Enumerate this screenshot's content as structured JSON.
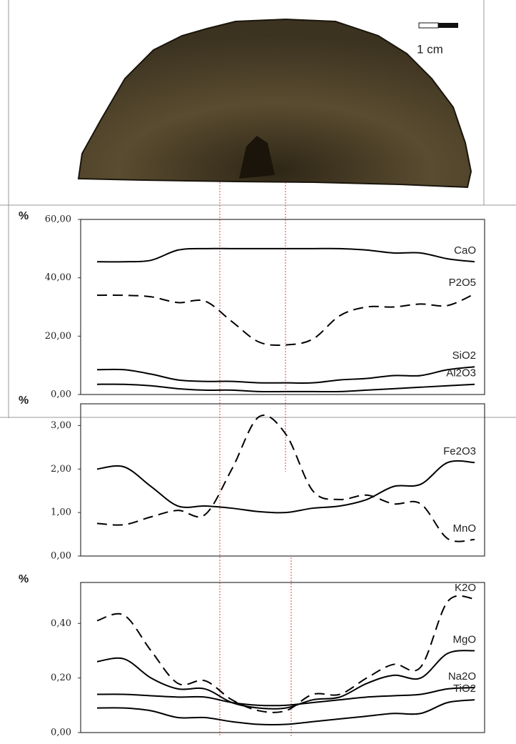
{
  "photo": {
    "scale_label": "1 cm"
  },
  "chart_data": [
    {
      "type": "line",
      "y_label": "%",
      "categories": [
        null,
        null,
        null,
        null,
        null,
        null,
        null,
        null,
        null,
        null,
        null,
        null,
        null,
        null,
        null
      ],
      "ylim": [
        0,
        60
      ],
      "yticks": [
        {
          "value": 0,
          "label": "0,00"
        },
        {
          "value": 20,
          "label": "20,00"
        },
        {
          "value": 40,
          "label": "40,00"
        },
        {
          "value": 60,
          "label": "60,00"
        }
      ],
      "series": [
        {
          "name": "CaO",
          "color": "#000000",
          "dashed": false,
          "values": [
            45.5,
            45.5,
            46,
            49.5,
            50,
            50,
            50,
            50,
            50,
            50,
            49.5,
            48.5,
            48.5,
            46.5,
            45.5
          ]
        },
        {
          "name": "P2O5",
          "color": "#000000",
          "dashed": true,
          "values": [
            34,
            34,
            33.5,
            31.5,
            32,
            25,
            18,
            17,
            19,
            27,
            30,
            30,
            31,
            30.5,
            34.5
          ]
        },
        {
          "name": "SiO2",
          "color": "#000000",
          "dashed": false,
          "values": [
            8.5,
            8.5,
            7,
            5,
            4.5,
            4.5,
            4,
            4,
            4,
            5,
            5.5,
            6.5,
            6.5,
            8.5,
            9.5
          ]
        },
        {
          "name": "Al2O3",
          "color": "#000000",
          "dashed": false,
          "values": [
            3.5,
            3.5,
            3,
            2,
            1.5,
            1.5,
            1,
            1,
            1,
            1,
            1.5,
            2,
            2.5,
            3,
            3.5
          ]
        }
      ]
    },
    {
      "type": "line",
      "y_label": "%",
      "categories": [
        null,
        null,
        null,
        null,
        null,
        null,
        null,
        null,
        null,
        null,
        null,
        null,
        null,
        null,
        null
      ],
      "ylim": [
        0,
        3.5
      ],
      "yticks": [
        {
          "value": 0,
          "label": "0,00"
        },
        {
          "value": 1,
          "label": "1,00"
        },
        {
          "value": 2,
          "label": "2,00"
        },
        {
          "value": 3,
          "label": "3,00"
        }
      ],
      "series": [
        {
          "name": "Fe2O3",
          "color": "#000000",
          "dashed": false,
          "values": [
            2.0,
            2.05,
            1.6,
            1.15,
            1.15,
            1.1,
            1.02,
            1.0,
            1.1,
            1.15,
            1.3,
            1.6,
            1.65,
            2.15,
            2.15
          ]
        },
        {
          "name": "MnO",
          "color": "#000000",
          "dashed": true,
          "values": [
            0.75,
            0.72,
            0.9,
            1.05,
            0.95,
            2.0,
            3.2,
            2.8,
            1.5,
            1.3,
            1.4,
            1.2,
            1.2,
            0.4,
            0.38
          ]
        }
      ]
    },
    {
      "type": "line",
      "y_label": "%",
      "categories": [
        null,
        null,
        null,
        null,
        null,
        null,
        null,
        null,
        null,
        null,
        null,
        null,
        null,
        null,
        null
      ],
      "ylim": [
        0,
        0.55
      ],
      "yticks": [
        {
          "value": 0,
          "label": "0,00"
        },
        {
          "value": 0.2,
          "label": "0,20"
        },
        {
          "value": 0.4,
          "label": "0,40"
        }
      ],
      "series": [
        {
          "name": "K2O",
          "color": "#000000",
          "dashed": true,
          "values": [
            0.41,
            0.43,
            0.3,
            0.18,
            0.19,
            0.12,
            0.08,
            0.08,
            0.14,
            0.14,
            0.2,
            0.25,
            0.24,
            0.48,
            0.49
          ]
        },
        {
          "name": "MgO",
          "color": "#000000",
          "dashed": false,
          "values": [
            0.26,
            0.27,
            0.2,
            0.16,
            0.16,
            0.11,
            0.09,
            0.09,
            0.12,
            0.13,
            0.18,
            0.21,
            0.2,
            0.29,
            0.3
          ]
        },
        {
          "name": "Na2O",
          "color": "#000000",
          "dashed": false,
          "values": [
            0.14,
            0.14,
            0.135,
            0.13,
            0.13,
            0.11,
            0.1,
            0.1,
            0.11,
            0.12,
            0.13,
            0.135,
            0.14,
            0.16,
            0.165
          ]
        },
        {
          "name": "TiO2",
          "color": "#000000",
          "dashed": false,
          "values": [
            0.09,
            0.09,
            0.08,
            0.055,
            0.055,
            0.04,
            0.03,
            0.03,
            0.04,
            0.05,
            0.06,
            0.07,
            0.07,
            0.11,
            0.12
          ]
        }
      ]
    }
  ]
}
